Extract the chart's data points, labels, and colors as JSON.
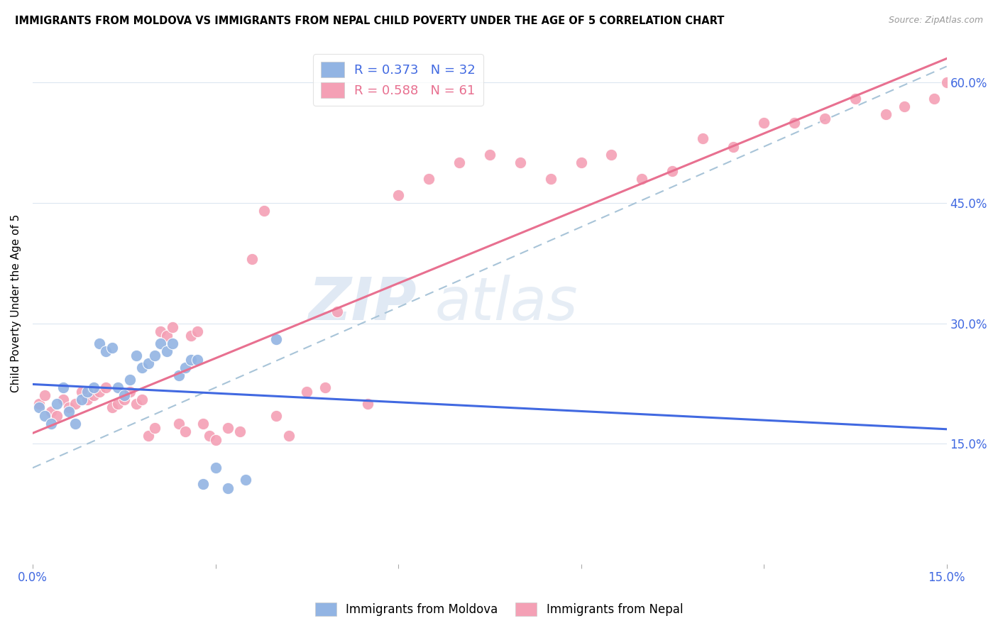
{
  "title": "IMMIGRANTS FROM MOLDOVA VS IMMIGRANTS FROM NEPAL CHILD POVERTY UNDER THE AGE OF 5 CORRELATION CHART",
  "source": "Source: ZipAtlas.com",
  "ylabel": "Child Poverty Under the Age of 5",
  "xlim": [
    0.0,
    0.15
  ],
  "ylim": [
    0.0,
    0.65
  ],
  "xticks": [
    0.0,
    0.03,
    0.06,
    0.09,
    0.12,
    0.15
  ],
  "xticklabels": [
    "0.0%",
    "",
    "",
    "",
    "",
    "15.0%"
  ],
  "yticks_right": [
    0.15,
    0.3,
    0.45,
    0.6
  ],
  "ytick_right_labels": [
    "15.0%",
    "30.0%",
    "45.0%",
    "60.0%"
  ],
  "moldova_color": "#92b4e3",
  "nepal_color": "#f4a0b5",
  "moldova_line_color": "#4169e1",
  "nepal_line_color": "#e87090",
  "dashed_line_color": "#a8c4d8",
  "R_moldova": 0.373,
  "N_moldova": 32,
  "R_nepal": 0.588,
  "N_nepal": 61,
  "watermark_zip": "ZIP",
  "watermark_atlas": "atlas",
  "moldova_scatter_x": [
    0.001,
    0.002,
    0.003,
    0.004,
    0.005,
    0.006,
    0.007,
    0.008,
    0.009,
    0.01,
    0.011,
    0.012,
    0.013,
    0.014,
    0.015,
    0.016,
    0.017,
    0.018,
    0.019,
    0.02,
    0.021,
    0.022,
    0.023,
    0.024,
    0.025,
    0.026,
    0.027,
    0.028,
    0.03,
    0.032,
    0.035,
    0.04
  ],
  "moldova_scatter_y": [
    0.195,
    0.185,
    0.175,
    0.2,
    0.22,
    0.19,
    0.175,
    0.205,
    0.215,
    0.22,
    0.275,
    0.265,
    0.27,
    0.22,
    0.21,
    0.23,
    0.26,
    0.245,
    0.25,
    0.26,
    0.275,
    0.265,
    0.275,
    0.235,
    0.245,
    0.255,
    0.255,
    0.1,
    0.12,
    0.095,
    0.105,
    0.28
  ],
  "nepal_scatter_x": [
    0.001,
    0.002,
    0.003,
    0.004,
    0.005,
    0.006,
    0.007,
    0.008,
    0.009,
    0.01,
    0.011,
    0.012,
    0.013,
    0.014,
    0.015,
    0.016,
    0.017,
    0.018,
    0.019,
    0.02,
    0.021,
    0.022,
    0.023,
    0.024,
    0.025,
    0.026,
    0.027,
    0.028,
    0.029,
    0.03,
    0.032,
    0.034,
    0.036,
    0.038,
    0.04,
    0.042,
    0.045,
    0.048,
    0.05,
    0.055,
    0.06,
    0.065,
    0.07,
    0.075,
    0.08,
    0.085,
    0.09,
    0.095,
    0.1,
    0.105,
    0.11,
    0.115,
    0.12,
    0.125,
    0.13,
    0.135,
    0.14,
    0.143,
    0.148,
    0.15,
    0.152
  ],
  "nepal_scatter_y": [
    0.2,
    0.21,
    0.19,
    0.185,
    0.205,
    0.195,
    0.2,
    0.215,
    0.205,
    0.21,
    0.215,
    0.22,
    0.195,
    0.2,
    0.205,
    0.215,
    0.2,
    0.205,
    0.16,
    0.17,
    0.29,
    0.285,
    0.295,
    0.175,
    0.165,
    0.285,
    0.29,
    0.175,
    0.16,
    0.155,
    0.17,
    0.165,
    0.38,
    0.44,
    0.185,
    0.16,
    0.215,
    0.22,
    0.315,
    0.2,
    0.46,
    0.48,
    0.5,
    0.51,
    0.5,
    0.48,
    0.5,
    0.51,
    0.48,
    0.49,
    0.53,
    0.52,
    0.55,
    0.55,
    0.555,
    0.58,
    0.56,
    0.57,
    0.58,
    0.6,
    0.61
  ]
}
